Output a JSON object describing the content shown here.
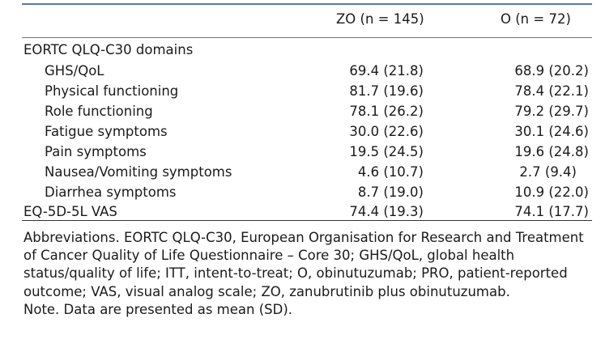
{
  "columns": {
    "zo": {
      "name": "ZO",
      "n": "(n = 145)"
    },
    "o": {
      "name": "O",
      "n": "(n = 72)"
    }
  },
  "section_heading": "EORTC QLQ-C30 domains",
  "rows": [
    {
      "label": "GHS/QoL",
      "zo": "69.4 (21.8)",
      "o": "68.9 (20.2)"
    },
    {
      "label": "Physical functioning",
      "zo": "81.7 (19.6)",
      "o": "78.4 (22.1)"
    },
    {
      "label": "Role functioning",
      "zo": "78.1 (26.2)",
      "o": "79.2 (29.7)"
    },
    {
      "label": "Fatigue symptoms",
      "zo": "30.0 (22.6)",
      "o": "30.1 (24.6)"
    },
    {
      "label": "Pain symptoms",
      "zo": "19.5 (24.5)",
      "o": "19.6 (24.8)"
    },
    {
      "label": "Nausea/Vomiting symptoms",
      "zo": "4.6 (10.7)",
      "o": "2.7 (9.4)"
    },
    {
      "label": "Diarrhea symptoms",
      "zo": "8.7 (19.0)",
      "o": "10.9 (22.0)"
    }
  ],
  "eq_row": {
    "label": "EQ-5D-5L VAS",
    "zo": "74.4 (19.3)",
    "o": "74.1 (17.7)"
  },
  "abbreviations": "Abbreviations. EORTC QLQ-C30, European Organisation for Research and Treatment of Cancer Quality of Life Questionnaire – Core 30; GHS/QoL, global health status/quality of life; ITT, intent-to-treat; O, obinutuzumab; PRO, patient-reported outcome; VAS, visual analog scale; ZO, zanubrutinib plus obinutuzumab.",
  "note": "Note. Data are presented as mean (SD)."
}
